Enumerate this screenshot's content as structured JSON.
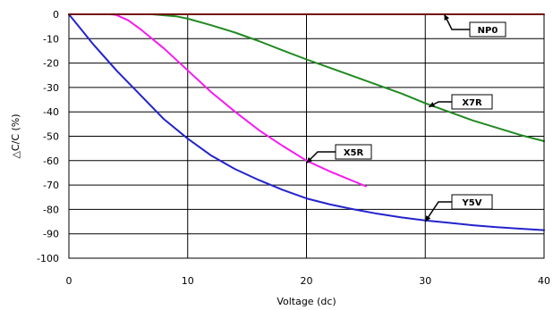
{
  "chart_data": {
    "type": "line",
    "xlabel": "Voltage (dc)",
    "ylabel": "△C/C (%)",
    "xlim": [
      0,
      40
    ],
    "ylim": [
      -100,
      0
    ],
    "x_ticks": [
      0,
      10,
      20,
      30,
      40
    ],
    "y_ticks": [
      0,
      -10,
      -20,
      -30,
      -40,
      -50,
      -60,
      -70,
      -80,
      -90,
      -100
    ],
    "grid": true,
    "series": [
      {
        "name": "NP0",
        "color": "#e8201b",
        "points": [
          [
            0,
            0
          ],
          [
            10,
            0
          ],
          [
            20,
            0
          ],
          [
            30,
            0
          ],
          [
            40,
            0
          ]
        ]
      },
      {
        "name": "X7R",
        "color": "#218a21",
        "points": [
          [
            0,
            0
          ],
          [
            5,
            0
          ],
          [
            7,
            0
          ],
          [
            9,
            -0.8
          ],
          [
            10,
            -1.8
          ],
          [
            12,
            -4.5
          ],
          [
            14,
            -7.5
          ],
          [
            16,
            -11
          ],
          [
            18,
            -14.8
          ],
          [
            20,
            -18.5
          ],
          [
            22,
            -22
          ],
          [
            24,
            -25.5
          ],
          [
            26,
            -29
          ],
          [
            28,
            -32.5
          ],
          [
            30,
            -36.5
          ],
          [
            32,
            -40
          ],
          [
            34,
            -43.5
          ],
          [
            36,
            -46.5
          ],
          [
            38,
            -49.5
          ],
          [
            40,
            -52
          ]
        ]
      },
      {
        "name": "X5R",
        "color": "#f51bf0",
        "points": [
          [
            0,
            0
          ],
          [
            3.5,
            0
          ],
          [
            4,
            -0.3
          ],
          [
            5,
            -2.5
          ],
          [
            6,
            -6
          ],
          [
            8,
            -14
          ],
          [
            10,
            -23
          ],
          [
            12,
            -32
          ],
          [
            14,
            -40
          ],
          [
            16,
            -47.5
          ],
          [
            18,
            -54
          ],
          [
            20,
            -60
          ],
          [
            22,
            -64.5
          ],
          [
            24,
            -68.5
          ],
          [
            25,
            -70.5
          ]
        ]
      },
      {
        "name": "Y5V",
        "color": "#2323cc",
        "points": [
          [
            0,
            0
          ],
          [
            1,
            -6
          ],
          [
            2,
            -12
          ],
          [
            4,
            -23
          ],
          [
            6,
            -33
          ],
          [
            8,
            -43
          ],
          [
            10,
            -51
          ],
          [
            12,
            -58
          ],
          [
            14,
            -63.5
          ],
          [
            16,
            -68
          ],
          [
            18,
            -72
          ],
          [
            20,
            -75.5
          ],
          [
            22,
            -78
          ],
          [
            24,
            -80
          ],
          [
            26,
            -81.8
          ],
          [
            28,
            -83.3
          ],
          [
            30,
            -84.5
          ],
          [
            32,
            -85.5
          ],
          [
            34,
            -86.5
          ],
          [
            36,
            -87.3
          ],
          [
            38,
            -87.9
          ],
          [
            40,
            -88.5
          ]
        ]
      }
    ],
    "annotations": [
      {
        "label": "NP0",
        "arrow_to": [
          31.6,
          0
        ]
      },
      {
        "label": "X7R",
        "arrow_to": [
          30.3,
          -38
        ]
      },
      {
        "label": "X5R",
        "arrow_to": [
          20,
          -61
        ]
      },
      {
        "label": "Y5V",
        "arrow_to": [
          30,
          -85
        ]
      }
    ]
  }
}
